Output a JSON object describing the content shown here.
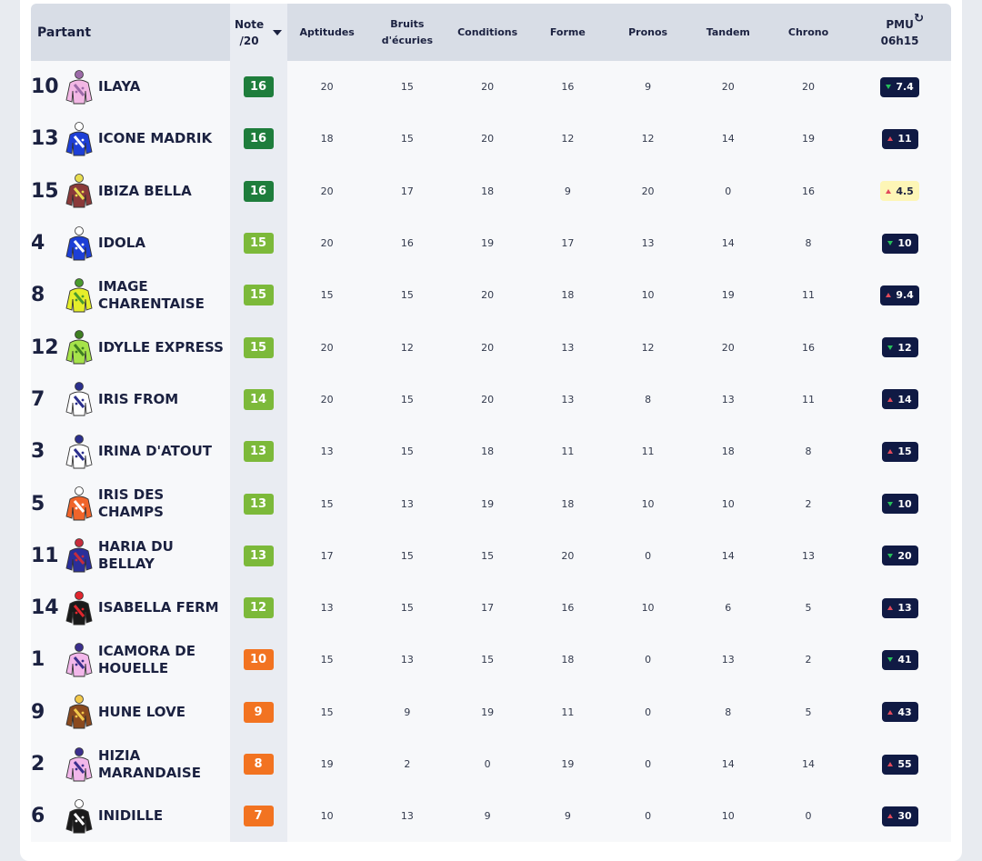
{
  "header": {
    "partant": "Partant",
    "note_line1": "Note",
    "note_line2": "/20",
    "aptitudes": "Aptitudes",
    "bruits_line1": "Bruits",
    "bruits_line2": "d'écuries",
    "conditions": "Conditions",
    "forme": "Forme",
    "pronos": "Pronos",
    "tandem": "Tandem",
    "chrono": "Chrono",
    "pmu_line1": "PMU",
    "pmu_line2": "06h15",
    "refresh_icon": "refresh-icon"
  },
  "colors": {
    "dark_green": "#1e7d3c",
    "light_green": "#7cb93a",
    "orange": "#f27321",
    "odds_bg": "#101a44",
    "odds_highlight": "#fdf6b6"
  },
  "rows": [
    {
      "num": "10",
      "name": "ILAYA",
      "note": "16",
      "aptitudes": "20",
      "bruits": "15",
      "conditions": "20",
      "forme": "16",
      "pronos": "9",
      "tandem": "20",
      "chrono": "20",
      "pmu": "7.4",
      "trend": "down",
      "silk": [
        "#f2b7e4",
        "#9c6aa8"
      ]
    },
    {
      "num": "13",
      "name": "ICONE MADRIK",
      "note": "16",
      "aptitudes": "18",
      "bruits": "15",
      "conditions": "20",
      "forme": "12",
      "pronos": "12",
      "tandem": "14",
      "chrono": "19",
      "pmu": "11",
      "trend": "up",
      "silk": [
        "#1d3fd6",
        "#ffffff"
      ]
    },
    {
      "num": "15",
      "name": "IBIZA BELLA",
      "note": "16",
      "aptitudes": "20",
      "bruits": "17",
      "conditions": "18",
      "forme": "9",
      "pronos": "20",
      "tandem": "0",
      "chrono": "16",
      "pmu": "4.5",
      "trend": "up",
      "silk": [
        "#8a3a3a",
        "#e8dd50"
      ]
    },
    {
      "num": "4",
      "name": "IDOLA",
      "note": "15",
      "aptitudes": "20",
      "bruits": "16",
      "conditions": "19",
      "forme": "17",
      "pronos": "13",
      "tandem": "14",
      "chrono": "8",
      "pmu": "10",
      "trend": "down",
      "silk": [
        "#1d3fd6",
        "#ffffff"
      ]
    },
    {
      "num": "8",
      "name": "IMAGE CHARENTAISE",
      "note": "15",
      "aptitudes": "15",
      "bruits": "15",
      "conditions": "20",
      "forme": "18",
      "pronos": "10",
      "tandem": "19",
      "chrono": "11",
      "pmu": "9.4",
      "trend": "up",
      "silk": [
        "#e6ee2a",
        "#4a9a2e"
      ]
    },
    {
      "num": "12",
      "name": "IDYLLE EXPRESS",
      "note": "15",
      "aptitudes": "20",
      "bruits": "12",
      "conditions": "20",
      "forme": "13",
      "pronos": "12",
      "tandem": "20",
      "chrono": "16",
      "pmu": "12",
      "trend": "down",
      "silk": [
        "#a6e34a",
        "#3f7f22"
      ]
    },
    {
      "num": "7",
      "name": "IRIS FROM",
      "note": "14",
      "aptitudes": "20",
      "bruits": "15",
      "conditions": "20",
      "forme": "13",
      "pronos": "8",
      "tandem": "13",
      "chrono": "11",
      "pmu": "14",
      "trend": "up",
      "silk": [
        "#ffffff",
        "#2b2f8c"
      ]
    },
    {
      "num": "3",
      "name": "IRINA D'ATOUT",
      "note": "13",
      "aptitudes": "13",
      "bruits": "15",
      "conditions": "18",
      "forme": "11",
      "pronos": "11",
      "tandem": "18",
      "chrono": "8",
      "pmu": "15",
      "trend": "up",
      "silk": [
        "#ffffff",
        "#2b2f8c"
      ]
    },
    {
      "num": "5",
      "name": "IRIS DES CHAMPS",
      "note": "13",
      "aptitudes": "15",
      "bruits": "13",
      "conditions": "19",
      "forme": "18",
      "pronos": "10",
      "tandem": "10",
      "chrono": "2",
      "pmu": "10",
      "trend": "down",
      "silk": [
        "#f0642a",
        "#ffffff"
      ]
    },
    {
      "num": "11",
      "name": "HARIA DU BELLAY",
      "note": "13",
      "aptitudes": "17",
      "bruits": "15",
      "conditions": "15",
      "forme": "20",
      "pronos": "0",
      "tandem": "14",
      "chrono": "13",
      "pmu": "20",
      "trend": "down",
      "silk": [
        "#2a2f9a",
        "#c72d3c"
      ]
    },
    {
      "num": "14",
      "name": "ISABELLA FERM",
      "note": "12",
      "aptitudes": "13",
      "bruits": "15",
      "conditions": "17",
      "forme": "16",
      "pronos": "10",
      "tandem": "6",
      "chrono": "5",
      "pmu": "13",
      "trend": "up",
      "silk": [
        "#1a1a1a",
        "#e0262e"
      ]
    },
    {
      "num": "1",
      "name": "ICAMORA DE HOUELLE",
      "note": "10",
      "aptitudes": "15",
      "bruits": "13",
      "conditions": "15",
      "forme": "18",
      "pronos": "0",
      "tandem": "13",
      "chrono": "2",
      "pmu": "41",
      "trend": "down",
      "silk": [
        "#f2b7ea",
        "#3b2f8c"
      ]
    },
    {
      "num": "9",
      "name": "HUNE LOVE",
      "note": "9",
      "aptitudes": "15",
      "bruits": "9",
      "conditions": "19",
      "forme": "11",
      "pronos": "0",
      "tandem": "8",
      "chrono": "5",
      "pmu": "43",
      "trend": "up",
      "silk": [
        "#8a4a1f",
        "#f2c84a"
      ]
    },
    {
      "num": "2",
      "name": "HIZIA MARANDAISE",
      "note": "8",
      "aptitudes": "19",
      "bruits": "2",
      "conditions": "0",
      "forme": "19",
      "pronos": "0",
      "tandem": "14",
      "chrono": "14",
      "pmu": "55",
      "trend": "up",
      "silk": [
        "#f2b7ea",
        "#3b2f8c"
      ]
    },
    {
      "num": "6",
      "name": "INIDILLE",
      "note": "7",
      "aptitudes": "10",
      "bruits": "13",
      "conditions": "9",
      "forme": "9",
      "pronos": "0",
      "tandem": "10",
      "chrono": "0",
      "pmu": "30",
      "trend": "up",
      "silk": [
        "#1a1a1a",
        "#ffffff"
      ]
    }
  ]
}
